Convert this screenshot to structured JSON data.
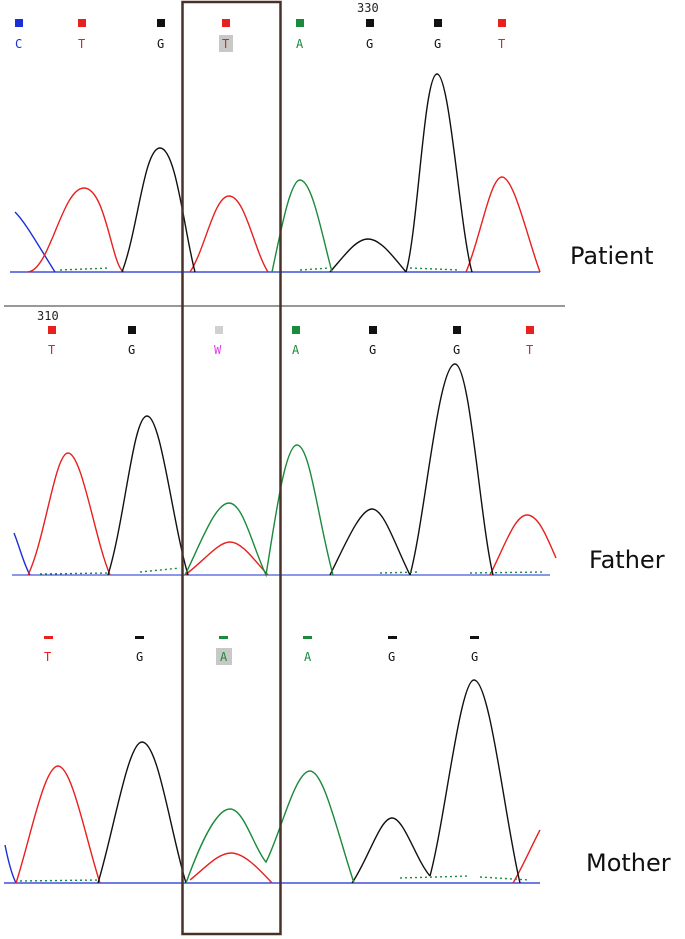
{
  "colors": {
    "A": "#1a8a3c",
    "C": "#1a2fd6",
    "G": "#111111",
    "T": "#e8201e",
    "W": "#e040e8",
    "box": "#4a3128",
    "divider": "#777777"
  },
  "panels": [
    {
      "id": "patient",
      "label": "Patient",
      "position_label": "330",
      "bases": [
        "C",
        "T",
        "G",
        "T",
        "A",
        "G",
        "G",
        "T"
      ]
    },
    {
      "id": "father",
      "label": "Father",
      "position_label": "310",
      "bases": [
        "T",
        "G",
        "W",
        "A",
        "G",
        "G",
        "T"
      ]
    },
    {
      "id": "mother",
      "label": "Mother",
      "position_label": "",
      "bases": [
        "T",
        "G",
        "A",
        "A",
        "G",
        "G"
      ]
    }
  ],
  "highlighted_base": {
    "patient": "T",
    "father": "W",
    "mother": "A"
  }
}
